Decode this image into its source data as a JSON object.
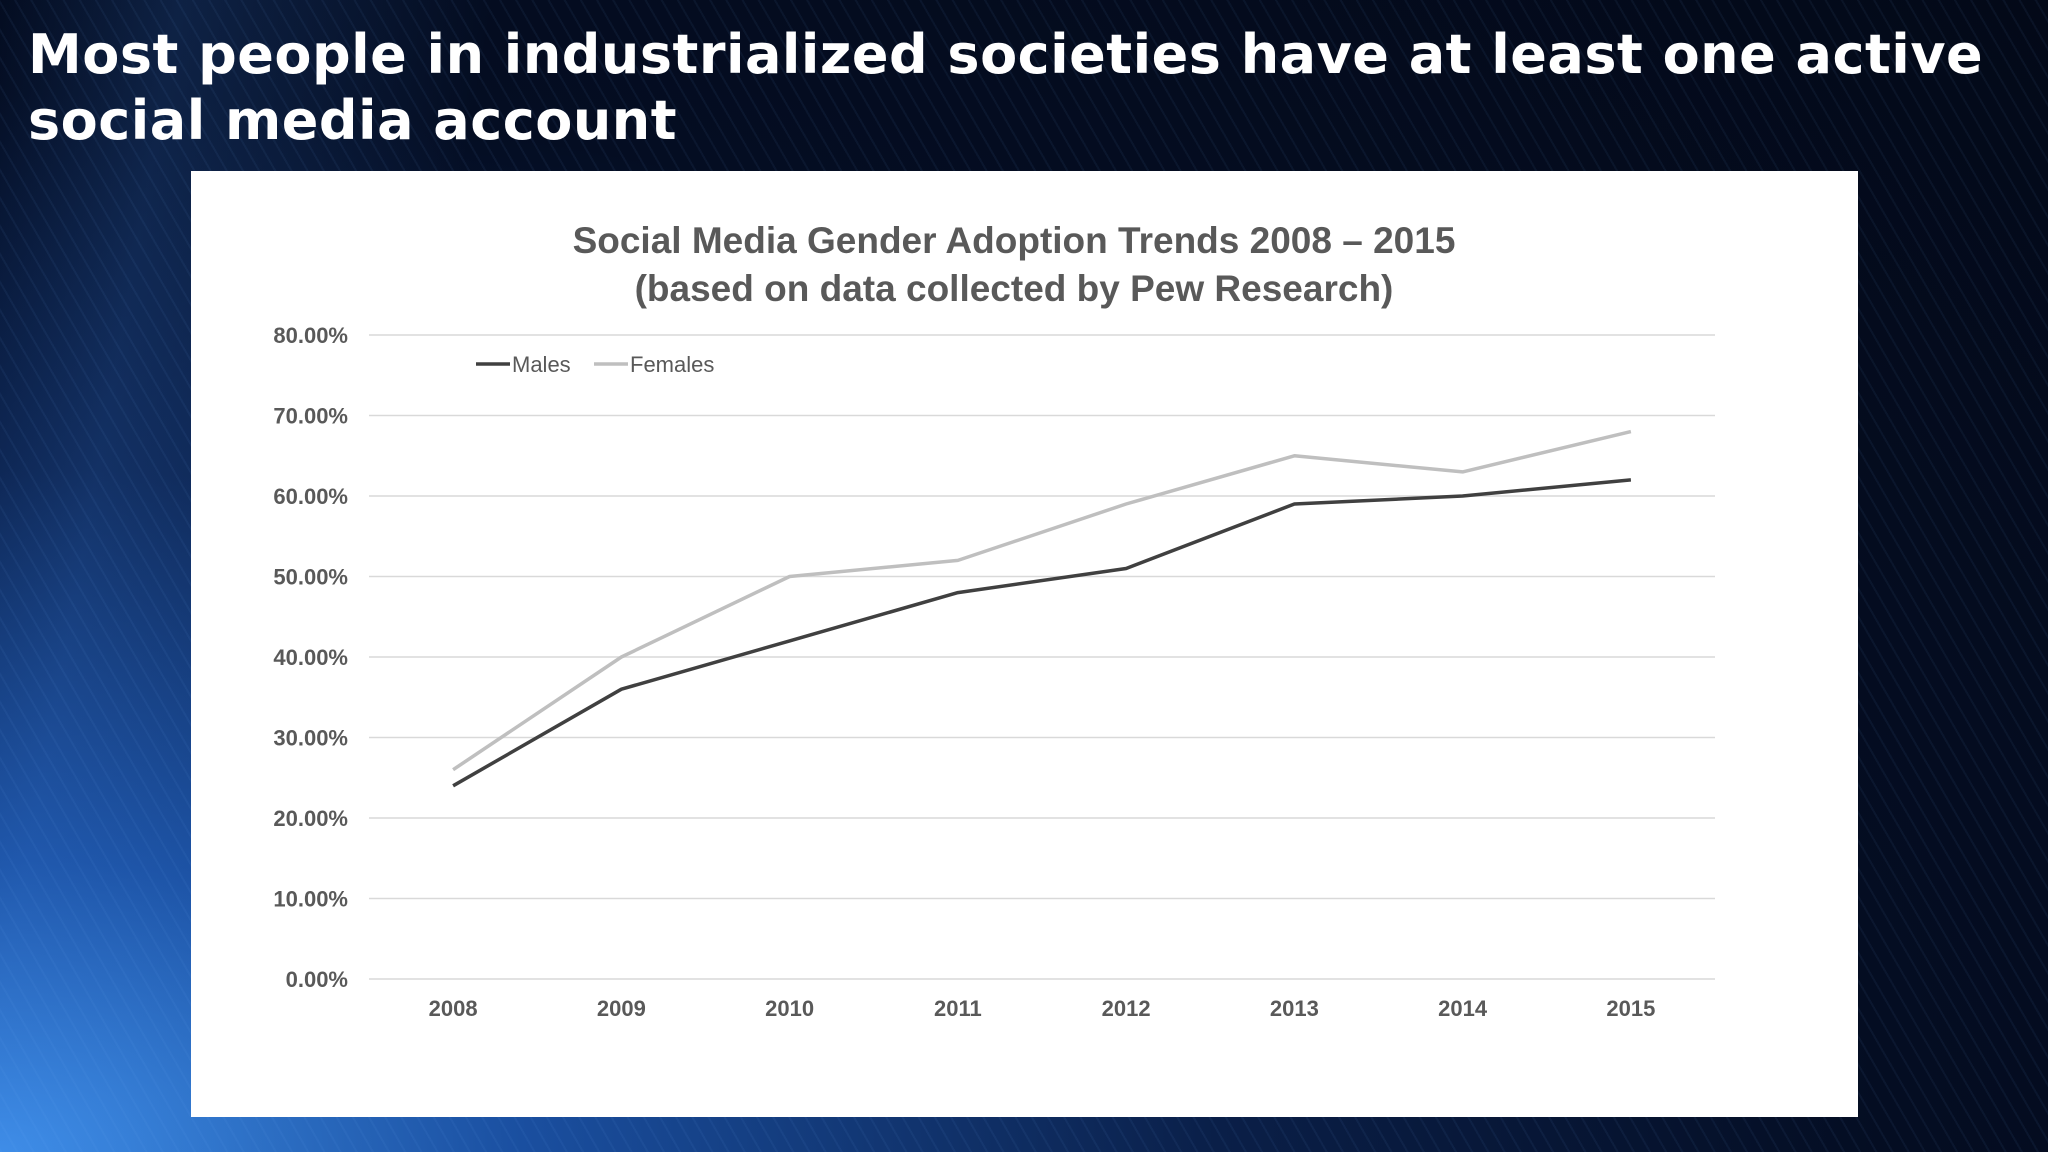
{
  "slide": {
    "title": "Most people in industrialized societies have at least one active social media account"
  },
  "colors": {
    "males": "#404040",
    "females": "#bfbfbf",
    "gridline": "#d9d9d9",
    "text": "#595959"
  },
  "chart_data": {
    "type": "line",
    "title_lines": [
      "Social Media Gender Adoption Trends 2008 – 2015",
      "(based on data collected by  Pew Research)"
    ],
    "categories": [
      "2008",
      "2009",
      "2010",
      "2011",
      "2012",
      "2013",
      "2014",
      "2015"
    ],
    "series": [
      {
        "name": "Males",
        "values": [
          24,
          36,
          42,
          48,
          51,
          59,
          60,
          62
        ]
      },
      {
        "name": "Females",
        "values": [
          26,
          40,
          50,
          52,
          59,
          65,
          63,
          68
        ]
      }
    ],
    "ylim": [
      0,
      80
    ],
    "yticks": [
      "0.00%",
      "10.00%",
      "20.00%",
      "30.00%",
      "40.00%",
      "50.00%",
      "60.00%",
      "70.00%",
      "80.00%"
    ],
    "grid": true,
    "legend_position": "top-left"
  }
}
